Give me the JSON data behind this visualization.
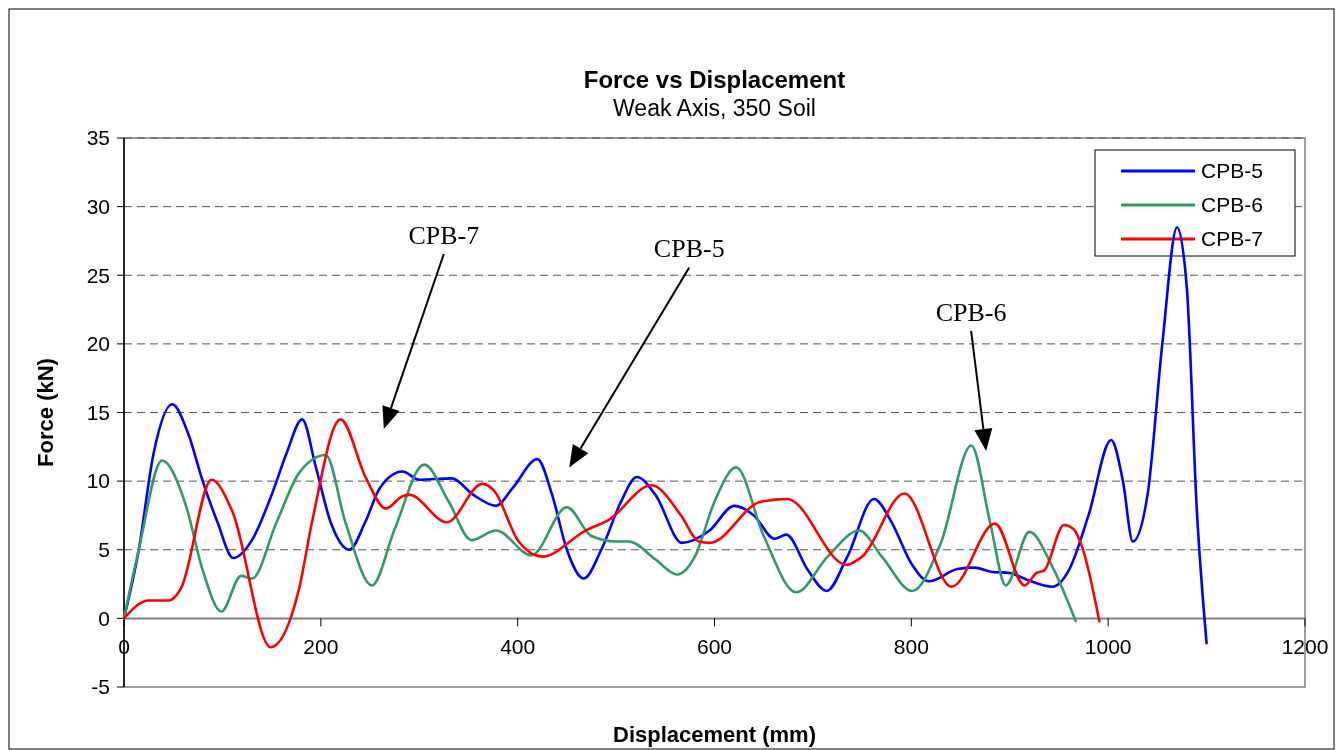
{
  "chart_data": {
    "type": "line",
    "title": "Force vs Displacement",
    "subtitle": "Weak Axis, 350 Soil",
    "xlabel": "Displacement (mm)",
    "ylabel": "Force (kN)",
    "xlim": [
      0,
      1200
    ],
    "xticks": [
      0,
      200,
      400,
      600,
      800,
      1000,
      1200
    ],
    "ylim": [
      -5,
      35
    ],
    "yticks": [
      -5,
      0,
      5,
      10,
      15,
      20,
      25,
      30,
      35
    ],
    "grid": "y",
    "legend": "top right",
    "annotations": [
      "CPB-7",
      "CPB-5",
      "CPB-6"
    ],
    "series": [
      {
        "name": "CPB-5",
        "color": "#0000ff",
        "x": [
          0,
          15,
          30,
          49,
          65,
          80,
          95,
          111,
          130,
          150,
          165,
          181,
          195,
          210,
          229,
          245,
          260,
          283,
          300,
          333,
          355,
          378,
          395,
          420,
          435,
          450,
          467,
          485,
          505,
          521,
          540,
          567,
          595,
          620,
          640,
          661,
          673,
          695,
          714,
          735,
          762,
          780,
          800,
          818,
          847,
          864,
          881,
          900,
          918,
          943,
          960,
          980,
          1003,
          1015,
          1025,
          1040,
          1055,
          1070,
          1080,
          1090,
          1100
        ],
        "values": [
          0,
          5,
          12,
          15.6,
          13.5,
          10,
          7,
          4.4,
          5.7,
          9,
          12,
          14.5,
          11,
          7,
          5,
          7,
          9.5,
          10.7,
          10.1,
          10.2,
          9,
          8.2,
          9.5,
          11.6,
          9,
          5,
          2.9,
          5,
          8.5,
          10.3,
          9,
          5.5,
          6.4,
          8.2,
          7.5,
          5.8,
          6.1,
          3.5,
          2,
          4.5,
          8.7,
          7,
          4,
          2.7,
          3.6,
          3.7,
          3.4,
          3.3,
          2.8,
          2.3,
          3.5,
          7.5,
          13,
          10,
          5.6,
          9,
          20,
          28.5,
          24,
          8,
          -1.8
        ]
      },
      {
        "name": "CPB-6",
        "color": "#339966",
        "x": [
          0,
          15,
          38.6,
          63,
          80,
          99,
          119,
          130,
          155,
          178,
          205,
          225,
          252,
          275,
          305,
          330,
          353,
          378,
          414,
          450,
          475,
          500,
          513,
          540,
          562,
          580,
          600,
          622,
          650,
          683,
          715,
          747,
          770,
          801,
          830,
          861,
          880,
          896,
          920,
          943,
          967
        ],
        "values": [
          0,
          5,
          11.5,
          8.2,
          3.5,
          0.5,
          3.1,
          2.9,
          7,
          10.6,
          11.9,
          7,
          2.4,
          6.5,
          11.2,
          8.5,
          5.7,
          6.4,
          4.6,
          8.1,
          6,
          5.6,
          5.6,
          4.3,
          3.2,
          4.5,
          8.5,
          11,
          6,
          1.9,
          4.5,
          6.4,
          4.5,
          2,
          5.5,
          12.6,
          7,
          2.4,
          6.3,
          3.8,
          -0.2
        ]
      },
      {
        "name": "CPB-7",
        "color": "#ff0000",
        "x": [
          0,
          25,
          46,
          58,
          89,
          110,
          149,
          178,
          191,
          220,
          246,
          266,
          283,
          290,
          328,
          364,
          376,
          401,
          425,
          469,
          493,
          536,
          566,
          584,
          595,
          647,
          674,
          734,
          750,
          793,
          841,
          885,
          915,
          927,
          935,
          955,
          965,
          974,
          991
        ],
        "values": [
          0,
          1.3,
          1.3,
          2.2,
          10.1,
          7.8,
          -2.1,
          2.2,
          7,
          14.5,
          10.2,
          8,
          8.9,
          9,
          7,
          9.8,
          9.3,
          5.6,
          4.5,
          6.4,
          7.2,
          9.7,
          7.5,
          5.6,
          5.5,
          8.5,
          8.7,
          3.9,
          4.5,
          9.1,
          2.3,
          6.9,
          2.4,
          3.3,
          3.5,
          6.8,
          6.5,
          5.1,
          -0.2
        ]
      }
    ]
  }
}
